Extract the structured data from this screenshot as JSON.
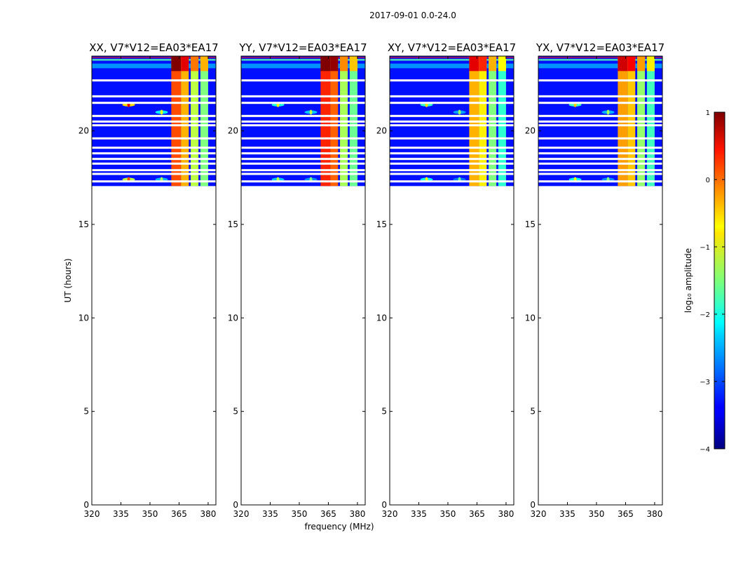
{
  "chart_data": {
    "type": "heatmap",
    "suptitle": "2017-09-01 0.0-24.0",
    "xlabel": "frequency (MHz)",
    "ylabel": "UT (hours)",
    "xlim": [
      320,
      384
    ],
    "ylim": [
      0,
      24
    ],
    "xticks": [
      320,
      335,
      350,
      365,
      380
    ],
    "yticks": [
      0,
      5,
      10,
      15,
      20
    ],
    "data_time_range": [
      17.05,
      24.0
    ],
    "flagged_rows_ut": [
      22.7,
      21.85,
      21.5,
      20.8,
      20.5,
      20.3,
      19.6,
      19.1,
      18.8,
      18.5,
      18.25,
      17.9,
      17.7,
      17.3
    ],
    "panels": [
      {
        "title": "XX, V7*V12=EA03*EA17",
        "bands": [
          {
            "f0": 361,
            "f1": 366,
            "value": 0.0
          },
          {
            "f0": 366,
            "f1": 370,
            "value": -0.5
          },
          {
            "f0": 371,
            "f1": 375,
            "value": -1.2
          },
          {
            "f0": 376,
            "f1": 380,
            "value": -1.5
          }
        ],
        "rfi_spots": [
          {
            "f": 339,
            "t": 21.4,
            "value": 0.5
          },
          {
            "f": 339,
            "t": 17.4,
            "value": 0.0
          },
          {
            "f": 356,
            "t": 21.0,
            "value": -1.0
          },
          {
            "f": 356,
            "t": 17.4,
            "value": -1.3
          }
        ]
      },
      {
        "title": "YY, V7*V12=EA03*EA17",
        "bands": [
          {
            "f0": 361,
            "f1": 366,
            "value": 0.2
          },
          {
            "f0": 366,
            "f1": 370,
            "value": -0.1
          },
          {
            "f0": 371,
            "f1": 375,
            "value": -1.3
          },
          {
            "f0": 376,
            "f1": 380,
            "value": -1.6
          }
        ],
        "rfi_spots": [
          {
            "f": 339,
            "t": 21.4,
            "value": -0.8
          },
          {
            "f": 339,
            "t": 17.4,
            "value": -1.2
          },
          {
            "f": 356,
            "t": 21.0,
            "value": -1.2
          },
          {
            "f": 356,
            "t": 17.4,
            "value": -1.5
          }
        ]
      },
      {
        "title": "XY, V7*V12=EA03*EA17",
        "bands": [
          {
            "f0": 361,
            "f1": 366,
            "value": -0.5
          },
          {
            "f0": 366,
            "f1": 370,
            "value": -0.8
          },
          {
            "f0": 371,
            "f1": 375,
            "value": -1.5
          },
          {
            "f0": 376,
            "f1": 380,
            "value": -1.9
          }
        ],
        "rfi_spots": [
          {
            "f": 339,
            "t": 21.4,
            "value": -0.7
          },
          {
            "f": 339,
            "t": 17.4,
            "value": -0.9
          },
          {
            "f": 356,
            "t": 21.0,
            "value": -1.4
          },
          {
            "f": 356,
            "t": 17.4,
            "value": -1.6
          }
        ]
      },
      {
        "title": "YX, V7*V12=EA03*EA17",
        "bands": [
          {
            "f0": 361,
            "f1": 366,
            "value": -0.4
          },
          {
            "f0": 366,
            "f1": 370,
            "value": -0.6
          },
          {
            "f0": 371,
            "f1": 375,
            "value": -1.4
          },
          {
            "f0": 376,
            "f1": 380,
            "value": -1.8
          }
        ],
        "rfi_spots": [
          {
            "f": 339,
            "t": 21.4,
            "value": -0.6
          },
          {
            "f": 339,
            "t": 17.4,
            "value": -0.9
          },
          {
            "f": 356,
            "t": 21.0,
            "value": -1.3
          },
          {
            "f": 356,
            "t": 17.4,
            "value": -1.5
          }
        ]
      }
    ],
    "background_value": -3.3,
    "colorbar": {
      "label": "log₁₀ amplitude",
      "range": [
        -4,
        1
      ],
      "ticks": [
        "1",
        "0",
        "−1",
        "−2",
        "−3",
        "−4"
      ],
      "colormap": "jet"
    }
  }
}
